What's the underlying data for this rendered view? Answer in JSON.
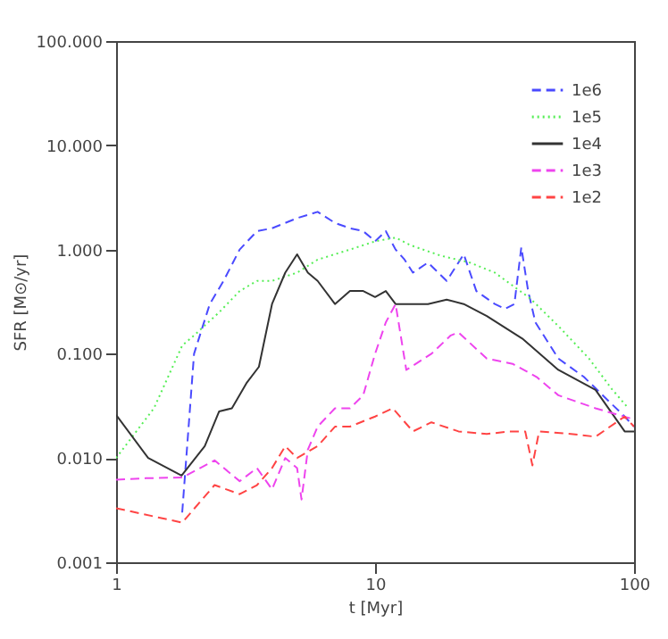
{
  "chart_data": {
    "type": "line",
    "xlabel": "t  [Myr]",
    "ylabel": "SFR  [M⊙/yr]",
    "log": "xy",
    "grid": false,
    "legend": "top right",
    "marker": "none",
    "xlim": [
      1,
      100
    ],
    "xticks": [
      1,
      10,
      100
    ],
    "ylim": [
      0.001,
      100
    ],
    "yticks": [
      {
        "value": 0.001,
        "label": "0.001"
      },
      {
        "value": 0.01,
        "label": "0.010"
      },
      {
        "value": 0.1,
        "label": "0.100"
      },
      {
        "value": 1,
        "label": "1.000"
      },
      {
        "value": 10,
        "label": "10.000"
      },
      {
        "value": 100,
        "label": "100.000"
      }
    ],
    "series": [
      {
        "name": "1e6",
        "color": "#4a4aff",
        "line_style": "dashed",
        "x": [
          1.8,
          2,
          2.3,
          2.6,
          3,
          3.5,
          4,
          5,
          6,
          7,
          8,
          9,
          10,
          11,
          12,
          13,
          14,
          16,
          18.9,
          22,
          24.6,
          29,
          31.8,
          34.5,
          36.7,
          39,
          41.6,
          51,
          64,
          79,
          92,
          100
        ],
        "values": [
          0.003,
          0.1,
          0.3,
          0.5,
          1.0,
          1.5,
          1.6,
          2.0,
          2.3,
          1.8,
          1.6,
          1.5,
          1.2,
          1.5,
          1.0,
          0.8,
          0.6,
          0.75,
          0.5,
          0.9,
          0.4,
          0.3,
          0.27,
          0.3,
          1.05,
          0.4,
          0.2,
          0.09,
          0.06,
          0.036,
          0.025,
          0.02
        ]
      },
      {
        "name": "1e5",
        "color": "#55ee55",
        "line_style": "dotted",
        "x": [
          1,
          1.4,
          1.8,
          2,
          2.5,
          3,
          3.5,
          4,
          5,
          6,
          8,
          10,
          12,
          13.7,
          18,
          23.2,
          29,
          39.7,
          51.5,
          67,
          82,
          94
        ],
        "values": [
          0.01,
          0.03,
          0.12,
          0.15,
          0.25,
          0.4,
          0.5,
          0.5,
          0.6,
          0.8,
          1.0,
          1.2,
          1.3,
          1.1,
          0.87,
          0.75,
          0.6,
          0.34,
          0.18,
          0.09,
          0.046,
          0.031
        ]
      },
      {
        "name": "1e4",
        "color": "#333333",
        "line_style": "solid",
        "x": [
          1,
          1.33,
          1.79,
          2.2,
          2.5,
          2.8,
          3.2,
          3.56,
          4,
          4.5,
          5,
          5.5,
          6,
          7,
          8,
          9,
          10,
          11,
          12,
          13.7,
          16,
          18.9,
          22,
          27,
          37,
          51,
          71,
          92,
          100
        ],
        "values": [
          0.026,
          0.01,
          0.0068,
          0.013,
          0.028,
          0.03,
          0.053,
          0.075,
          0.3,
          0.6,
          0.9,
          0.6,
          0.5,
          0.3,
          0.4,
          0.4,
          0.35,
          0.4,
          0.3,
          0.3,
          0.3,
          0.33,
          0.3,
          0.23,
          0.14,
          0.07,
          0.045,
          0.018,
          0.018
        ]
      },
      {
        "name": "1e3",
        "color": "#ee44ee",
        "line_style": "dashed",
        "x": [
          1,
          1.3,
          1.8,
          2.4,
          3,
          3.5,
          4,
          4.5,
          5,
          5.2,
          5.5,
          6,
          7,
          8,
          9,
          10,
          11,
          12,
          13.2,
          16.5,
          19.6,
          21,
          27,
          34,
          42,
          51,
          71,
          97
        ],
        "values": [
          0.0062,
          0.0064,
          0.0065,
          0.0095,
          0.006,
          0.008,
          0.005,
          0.01,
          0.008,
          0.004,
          0.012,
          0.02,
          0.03,
          0.03,
          0.04,
          0.1,
          0.2,
          0.3,
          0.07,
          0.1,
          0.15,
          0.16,
          0.09,
          0.08,
          0.06,
          0.04,
          0.03,
          0.024
        ]
      },
      {
        "name": "1e2",
        "color": "#ff4444",
        "line_style": "dashed",
        "x": [
          1,
          1.8,
          2.4,
          3,
          3.5,
          4,
          4.5,
          5,
          6,
          7,
          8,
          10,
          11.7,
          14,
          16.5,
          21,
          27,
          33,
          38,
          40.5,
          43,
          57,
          71,
          92,
          100
        ],
        "values": [
          0.0033,
          0.0024,
          0.0055,
          0.0045,
          0.0055,
          0.008,
          0.013,
          0.01,
          0.013,
          0.02,
          0.02,
          0.025,
          0.03,
          0.018,
          0.022,
          0.018,
          0.017,
          0.018,
          0.018,
          0.0085,
          0.018,
          0.017,
          0.016,
          0.025,
          0.02
        ]
      }
    ]
  }
}
